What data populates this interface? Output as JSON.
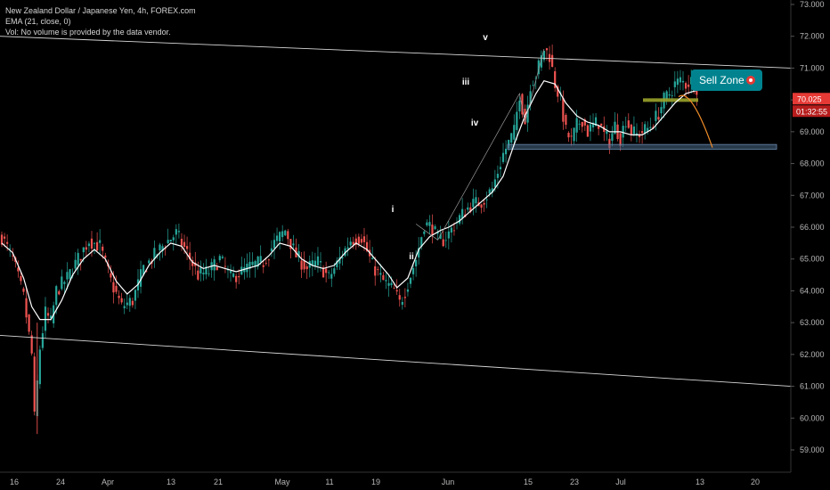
{
  "legend": {
    "symbol_line": "New Zealand Dollar / Japanese Yen, 4h, FOREX.com",
    "indicator_line": "EMA (21, close, 0)",
    "volume_line": "Vol: No volume is provided by the data vendor."
  },
  "chart_data": {
    "type": "candlestick",
    "symbol": "New Zealand Dollar / Japanese Yen",
    "interval": "4h",
    "exchange": "FOREX.com",
    "ylim": [
      58.5,
      73.1
    ],
    "y_ticks": [
      "73.000",
      "72.000",
      "71.000",
      "70.000",
      "69.000",
      "68.000",
      "67.000",
      "66.000",
      "65.000",
      "64.000",
      "63.000",
      "62.000",
      "61.000",
      "60.000",
      "59.000"
    ],
    "x_tick_labels": [
      "16",
      "24",
      "Apr",
      "13",
      "21",
      "May",
      "11",
      "19",
      "Jun",
      "15",
      "23",
      "Jul",
      "13",
      "20"
    ],
    "price_tag": {
      "value": "70.025",
      "countdown": "01:32:55",
      "color": "#e53935"
    },
    "callout": {
      "text": "Sell Zone",
      "icon": "red-circle-icon",
      "color": "#00838f"
    },
    "wave_labels": [
      "i",
      "ii",
      "iii",
      "iv",
      "v"
    ],
    "price_path": [
      [
        0,
        65.7
      ],
      [
        4,
        65.0
      ],
      [
        8,
        63.8
      ],
      [
        11,
        62.0
      ],
      [
        12,
        60.0
      ],
      [
        14,
        62.2
      ],
      [
        16,
        63.3
      ],
      [
        18,
        63.0
      ],
      [
        20,
        64.0
      ],
      [
        24,
        64.4
      ],
      [
        28,
        65.0
      ],
      [
        32,
        65.6
      ],
      [
        36,
        65.4
      ],
      [
        40,
        64.3
      ],
      [
        44,
        63.5
      ],
      [
        48,
        63.7
      ],
      [
        52,
        64.7
      ],
      [
        56,
        65.1
      ],
      [
        60,
        65.5
      ],
      [
        64,
        65.8
      ],
      [
        68,
        65.2
      ],
      [
        72,
        64.5
      ],
      [
        76,
        64.6
      ],
      [
        80,
        65.0
      ],
      [
        84,
        64.4
      ],
      [
        88,
        64.6
      ],
      [
        92,
        64.8
      ],
      [
        96,
        64.9
      ],
      [
        100,
        65.5
      ],
      [
        104,
        65.9
      ],
      [
        108,
        65.1
      ],
      [
        112,
        64.7
      ],
      [
        116,
        64.9
      ],
      [
        120,
        64.4
      ],
      [
        124,
        65.0
      ],
      [
        128,
        65.6
      ],
      [
        132,
        65.7
      ],
      [
        136,
        64.8
      ],
      [
        140,
        64.3
      ],
      [
        144,
        64.0
      ],
      [
        146,
        63.6
      ],
      [
        148,
        64.0
      ],
      [
        152,
        65.0
      ],
      [
        155,
        66.1
      ],
      [
        158,
        66.0
      ],
      [
        160,
        65.6
      ],
      [
        162,
        65.6
      ],
      [
        164,
        65.8
      ],
      [
        168,
        66.3
      ],
      [
        172,
        66.7
      ],
      [
        176,
        66.8
      ],
      [
        180,
        67.2
      ],
      [
        184,
        68.3
      ],
      [
        188,
        69.0
      ],
      [
        190,
        70.2
      ],
      [
        192,
        69.3
      ],
      [
        194,
        70.5
      ],
      [
        196,
        70.8
      ],
      [
        198,
        71.3
      ],
      [
        199,
        71.6
      ],
      [
        201,
        71.4
      ],
      [
        203,
        70.5
      ],
      [
        205,
        70.0
      ],
      [
        207,
        69.0
      ],
      [
        209,
        68.7
      ],
      [
        211,
        69.2
      ],
      [
        213,
        69.4
      ],
      [
        215,
        69.0
      ],
      [
        217,
        69.2
      ],
      [
        219,
        69.3
      ],
      [
        221,
        68.9
      ],
      [
        223,
        68.7
      ],
      [
        225,
        69.2
      ],
      [
        227,
        68.8
      ],
      [
        229,
        69.4
      ],
      [
        231,
        69.0
      ],
      [
        233,
        68.9
      ],
      [
        235,
        69.0
      ],
      [
        237,
        69.1
      ],
      [
        239,
        69.3
      ],
      [
        241,
        69.6
      ],
      [
        243,
        70.0
      ],
      [
        245,
        70.2
      ],
      [
        247,
        70.5
      ],
      [
        249,
        70.6
      ],
      [
        251,
        70.5
      ],
      [
        253,
        70.6
      ],
      [
        255,
        70.4
      ]
    ],
    "ema_path": [
      [
        0,
        65.5
      ],
      [
        4,
        65.2
      ],
      [
        8,
        64.4
      ],
      [
        11,
        63.5
      ],
      [
        14,
        63.1
      ],
      [
        18,
        63.1
      ],
      [
        22,
        63.7
      ],
      [
        26,
        64.5
      ],
      [
        30,
        65.0
      ],
      [
        34,
        65.3
      ],
      [
        38,
        65.0
      ],
      [
        42,
        64.3
      ],
      [
        46,
        63.9
      ],
      [
        50,
        64.2
      ],
      [
        54,
        64.8
      ],
      [
        58,
        65.2
      ],
      [
        62,
        65.5
      ],
      [
        66,
        65.4
      ],
      [
        70,
        64.9
      ],
      [
        74,
        64.7
      ],
      [
        78,
        64.8
      ],
      [
        82,
        64.7
      ],
      [
        86,
        64.6
      ],
      [
        90,
        64.7
      ],
      [
        94,
        64.8
      ],
      [
        98,
        65.1
      ],
      [
        102,
        65.5
      ],
      [
        106,
        65.4
      ],
      [
        110,
        65.0
      ],
      [
        114,
        64.8
      ],
      [
        118,
        64.7
      ],
      [
        122,
        64.8
      ],
      [
        126,
        65.2
      ],
      [
        130,
        65.5
      ],
      [
        134,
        65.3
      ],
      [
        138,
        64.9
      ],
      [
        142,
        64.5
      ],
      [
        145,
        64.1
      ],
      [
        149,
        64.4
      ],
      [
        153,
        65.3
      ],
      [
        157,
        65.7
      ],
      [
        161,
        65.9
      ],
      [
        164,
        66.0
      ],
      [
        168,
        66.2
      ],
      [
        172,
        66.5
      ],
      [
        176,
        66.8
      ],
      [
        180,
        67.1
      ],
      [
        184,
        67.6
      ],
      [
        188,
        68.6
      ],
      [
        192,
        69.5
      ],
      [
        196,
        70.2
      ],
      [
        199,
        70.6
      ],
      [
        203,
        70.5
      ],
      [
        207,
        69.9
      ],
      [
        211,
        69.5
      ],
      [
        215,
        69.3
      ],
      [
        219,
        69.2
      ],
      [
        223,
        69.0
      ],
      [
        227,
        69.0
      ],
      [
        231,
        68.9
      ],
      [
        235,
        68.9
      ],
      [
        239,
        69.1
      ],
      [
        243,
        69.5
      ],
      [
        247,
        69.9
      ],
      [
        251,
        70.2
      ],
      [
        255,
        70.3
      ]
    ],
    "resistance_zone": [
      69.95,
      70.05
    ],
    "support_zone": [
      68.45,
      68.6
    ],
    "projection": [
      [
        255,
        70.1
      ],
      [
        257,
        70.0
      ],
      [
        260,
        69.6
      ],
      [
        262,
        69.0
      ],
      [
        265,
        68.5
      ]
    ],
    "channel_upper": [
      [
        0,
        72.0
      ],
      [
        300,
        71.0
      ]
    ],
    "channel_lower": [
      [
        0,
        62.6
      ],
      [
        300,
        61.0
      ]
    ],
    "colors": {
      "up": "#26a69a",
      "down": "#ef5350",
      "ema": "#ffffff",
      "zone": "#4a6a8a",
      "projection": "#f08c28"
    }
  }
}
